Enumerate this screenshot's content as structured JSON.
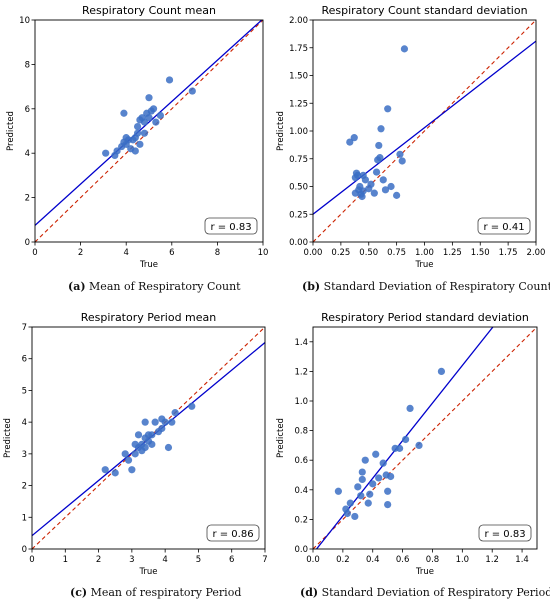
{
  "colors": {
    "points": "#3b6fc4",
    "fit": "#0000cc",
    "identity": "#cc2200",
    "axis": "#000000"
  },
  "chart_data": [
    {
      "type": "scatter",
      "title": "Respiratory Count mean",
      "xlabel": "True",
      "ylabel": "Predicted",
      "xlim": [
        0,
        10
      ],
      "ylim": [
        0,
        10
      ],
      "xticks": [
        0,
        2,
        4,
        6,
        8,
        10
      ],
      "yticks": [
        0,
        2,
        4,
        6,
        8,
        10
      ],
      "tick_labels_x": [
        "0",
        "2",
        "4",
        "6",
        "8",
        "10"
      ],
      "tick_labels_y": [
        "0",
        "2",
        "4",
        "6",
        "8",
        "10"
      ],
      "annotation": "r = 0.83",
      "fit_line": {
        "slope": 0.93,
        "intercept": 0.75
      },
      "identity_line": true,
      "points": [
        [
          3.1,
          4.0
        ],
        [
          3.5,
          3.9
        ],
        [
          3.6,
          4.1
        ],
        [
          3.8,
          4.3
        ],
        [
          3.9,
          4.5
        ],
        [
          4.0,
          4.4
        ],
        [
          4.0,
          4.7
        ],
        [
          4.1,
          4.6
        ],
        [
          4.2,
          4.2
        ],
        [
          4.3,
          4.6
        ],
        [
          4.4,
          4.7
        ],
        [
          4.5,
          4.9
        ],
        [
          4.5,
          5.2
        ],
        [
          4.6,
          5.5
        ],
        [
          4.7,
          5.6
        ],
        [
          4.8,
          5.4
        ],
        [
          4.9,
          5.8
        ],
        [
          5.0,
          5.6
        ],
        [
          5.0,
          6.5
        ],
        [
          5.1,
          5.9
        ],
        [
          5.2,
          6.0
        ],
        [
          5.3,
          5.4
        ],
        [
          5.5,
          5.7
        ],
        [
          5.9,
          7.3
        ],
        [
          6.9,
          6.8
        ],
        [
          3.9,
          5.8
        ],
        [
          4.6,
          4.4
        ],
        [
          4.4,
          4.1
        ],
        [
          4.8,
          4.9
        ]
      ]
    },
    {
      "type": "scatter",
      "title": "Respiratory Count standard deviation",
      "xlabel": "True",
      "ylabel": "Predicted",
      "xlim": [
        0,
        2
      ],
      "ylim": [
        0,
        2
      ],
      "xticks": [
        0,
        0.25,
        0.5,
        0.75,
        1.0,
        1.25,
        1.5,
        1.75,
        2.0
      ],
      "yticks": [
        0,
        0.25,
        0.5,
        0.75,
        1.0,
        1.25,
        1.5,
        1.75,
        2.0
      ],
      "tick_labels_x": [
        "0.00",
        "0.25",
        "0.50",
        "0.75",
        "1.00",
        "1.25",
        "1.50",
        "1.75",
        "2.00"
      ],
      "tick_labels_y": [
        "0.00",
        "0.25",
        "0.50",
        "0.75",
        "1.00",
        "1.25",
        "1.50",
        "1.75",
        "2.00"
      ],
      "annotation": "r = 0.41",
      "fit_line": {
        "slope": 0.78,
        "intercept": 0.25
      },
      "identity_line": true,
      "points": [
        [
          0.33,
          0.9
        ],
        [
          0.37,
          0.94
        ],
        [
          0.38,
          0.44
        ],
        [
          0.39,
          0.62
        ],
        [
          0.4,
          0.6
        ],
        [
          0.41,
          0.47
        ],
        [
          0.42,
          0.5
        ],
        [
          0.43,
          0.43
        ],
        [
          0.44,
          0.41
        ],
        [
          0.45,
          0.46
        ],
        [
          0.47,
          0.56
        ],
        [
          0.5,
          0.48
        ],
        [
          0.52,
          0.52
        ],
        [
          0.55,
          0.44
        ],
        [
          0.57,
          0.63
        ],
        [
          0.58,
          0.74
        ],
        [
          0.59,
          0.87
        ],
        [
          0.6,
          0.76
        ],
        [
          0.61,
          1.02
        ],
        [
          0.63,
          0.56
        ],
        [
          0.65,
          0.47
        ],
        [
          0.67,
          1.2
        ],
        [
          0.7,
          0.5
        ],
        [
          0.75,
          0.42
        ],
        [
          0.78,
          0.79
        ],
        [
          0.8,
          0.73
        ],
        [
          0.82,
          1.74
        ],
        [
          0.38,
          0.58
        ],
        [
          0.45,
          0.6
        ]
      ]
    },
    {
      "type": "scatter",
      "title": "Respiratory Period mean",
      "xlabel": "True",
      "ylabel": "Predicted",
      "xlim": [
        0,
        7
      ],
      "ylim": [
        0,
        7
      ],
      "xticks": [
        0,
        1,
        2,
        3,
        4,
        5,
        6,
        7
      ],
      "yticks": [
        0,
        1,
        2,
        3,
        4,
        5,
        6,
        7
      ],
      "tick_labels_x": [
        "0",
        "1",
        "2",
        "3",
        "4",
        "5",
        "6",
        "7"
      ],
      "tick_labels_y": [
        "0",
        "1",
        "2",
        "3",
        "4",
        "5",
        "6",
        "7"
      ],
      "annotation": "r = 0.86",
      "fit_line": {
        "slope": 0.87,
        "intercept": 0.42
      },
      "identity_line": true,
      "points": [
        [
          2.2,
          2.5
        ],
        [
          2.5,
          2.4
        ],
        [
          2.8,
          3.0
        ],
        [
          2.9,
          2.8
        ],
        [
          3.0,
          2.5
        ],
        [
          3.1,
          3.0
        ],
        [
          3.2,
          3.2
        ],
        [
          3.2,
          3.6
        ],
        [
          3.3,
          3.1
        ],
        [
          3.3,
          3.3
        ],
        [
          3.4,
          3.2
        ],
        [
          3.4,
          3.5
        ],
        [
          3.4,
          4.0
        ],
        [
          3.5,
          3.6
        ],
        [
          3.6,
          3.6
        ],
        [
          3.6,
          3.3
        ],
        [
          3.7,
          4.0
        ],
        [
          3.8,
          3.7
        ],
        [
          3.9,
          3.8
        ],
        [
          3.9,
          4.1
        ],
        [
          4.0,
          4.0
        ],
        [
          4.1,
          3.2
        ],
        [
          4.2,
          4.0
        ],
        [
          4.3,
          4.3
        ],
        [
          4.8,
          4.5
        ],
        [
          3.5,
          3.4
        ],
        [
          3.1,
          3.3
        ]
      ]
    },
    {
      "type": "scatter",
      "title": "Respiratory Period standard deviation",
      "xlabel": "True",
      "ylabel": "Predicted",
      "xlim": [
        0,
        1.5
      ],
      "ylim": [
        0,
        1.5
      ],
      "xticks": [
        0,
        0.2,
        0.4,
        0.6,
        0.8,
        1.0,
        1.2,
        1.4
      ],
      "yticks": [
        0,
        0.2,
        0.4,
        0.6,
        0.8,
        1.0,
        1.2,
        1.4
      ],
      "tick_labels_x": [
        "0.0",
        "0.2",
        "0.4",
        "0.6",
        "0.8",
        "1.0",
        "1.2",
        "1.4"
      ],
      "tick_labels_y": [
        "0.0",
        "0.2",
        "0.4",
        "0.6",
        "0.8",
        "1.0",
        "1.2",
        "1.4"
      ],
      "annotation": "r = 0.83",
      "fit_line": {
        "slope": 1.27,
        "intercept": -0.03
      },
      "identity_line": true,
      "points": [
        [
          0.17,
          0.39
        ],
        [
          0.22,
          0.27
        ],
        [
          0.23,
          0.24
        ],
        [
          0.25,
          0.31
        ],
        [
          0.28,
          0.22
        ],
        [
          0.3,
          0.42
        ],
        [
          0.32,
          0.36
        ],
        [
          0.33,
          0.52
        ],
        [
          0.33,
          0.47
        ],
        [
          0.35,
          0.6
        ],
        [
          0.37,
          0.31
        ],
        [
          0.38,
          0.37
        ],
        [
          0.4,
          0.44
        ],
        [
          0.42,
          0.64
        ],
        [
          0.44,
          0.48
        ],
        [
          0.47,
          0.58
        ],
        [
          0.49,
          0.5
        ],
        [
          0.5,
          0.39
        ],
        [
          0.5,
          0.3
        ],
        [
          0.52,
          0.49
        ],
        [
          0.55,
          0.68
        ],
        [
          0.58,
          0.68
        ],
        [
          0.62,
          0.74
        ],
        [
          0.65,
          0.95
        ],
        [
          0.71,
          0.7
        ],
        [
          0.86,
          1.2
        ]
      ]
    }
  ],
  "captions": [
    {
      "label": "(a)",
      "text": " Mean of Respiratory Count"
    },
    {
      "label": "(b)",
      "text": " Standard Deviation of Respiratory Count"
    },
    {
      "label": "(c)",
      "text": " Mean of respiratory Period"
    },
    {
      "label": "(d)",
      "text": " Standard Deviation of Respiratory Period"
    }
  ]
}
